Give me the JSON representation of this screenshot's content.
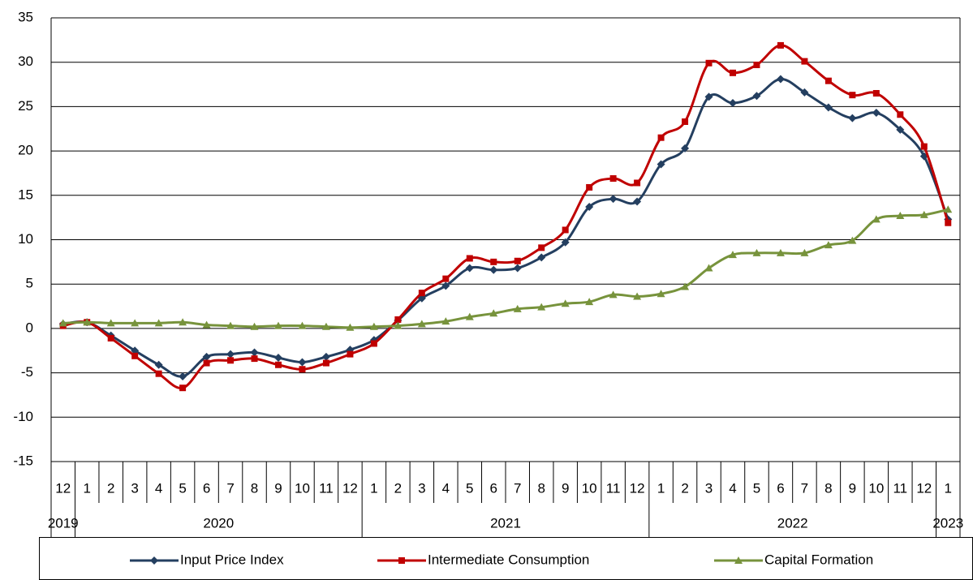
{
  "chart_data": {
    "type": "line",
    "categories": [
      "12",
      "1",
      "2",
      "3",
      "4",
      "5",
      "6",
      "7",
      "8",
      "9",
      "10",
      "11",
      "12",
      "1",
      "2",
      "3",
      "4",
      "5",
      "6",
      "7",
      "8",
      "9",
      "10",
      "11",
      "12",
      "1",
      "2",
      "3",
      "4",
      "5",
      "6",
      "7",
      "8",
      "9",
      "10",
      "11",
      "12",
      "1"
    ],
    "years": [
      "2019",
      "2020",
      "2021",
      "2022",
      "2023"
    ],
    "series": [
      {
        "name": "Input Price Index",
        "color": "#243f60",
        "marker": "diamond",
        "values": [
          0.5,
          0.7,
          -0.8,
          -2.5,
          -4.1,
          -5.4,
          -3.2,
          -2.9,
          -2.7,
          -3.3,
          -3.8,
          -3.2,
          -2.4,
          -1.3,
          0.9,
          3.4,
          4.8,
          6.8,
          6.6,
          6.8,
          8.0,
          9.7,
          13.7,
          14.6,
          14.3,
          18.5,
          20.3,
          26.1,
          25.4,
          26.2,
          28.1,
          26.6,
          24.9,
          23.7,
          24.3,
          22.4,
          19.4,
          12.3
        ]
      },
      {
        "name": "Intermediate Consumption",
        "color": "#c00000",
        "marker": "square",
        "values": [
          0.3,
          0.7,
          -1.1,
          -3.1,
          -5.1,
          -6.7,
          -3.9,
          -3.6,
          -3.4,
          -4.1,
          -4.6,
          -3.9,
          -2.9,
          -1.7,
          1.0,
          4.0,
          5.6,
          7.9,
          7.5,
          7.6,
          9.1,
          11.1,
          15.9,
          16.9,
          16.4,
          21.5,
          23.3,
          29.9,
          28.8,
          29.7,
          31.9,
          30.1,
          27.9,
          26.3,
          26.5,
          24.1,
          20.5,
          11.9
        ]
      },
      {
        "name": "Capital Formation",
        "color": "#77933c",
        "marker": "triangle",
        "values": [
          0.6,
          0.7,
          0.6,
          0.6,
          0.6,
          0.7,
          0.4,
          0.3,
          0.2,
          0.3,
          0.3,
          0.2,
          0.1,
          0.2,
          0.3,
          0.5,
          0.8,
          1.3,
          1.7,
          2.2,
          2.4,
          2.8,
          3.0,
          3.8,
          3.6,
          3.9,
          4.7,
          6.8,
          8.3,
          8.5,
          8.5,
          8.5,
          9.4,
          9.9,
          12.3,
          12.7,
          12.8,
          13.4
        ]
      }
    ],
    "ylim": [
      -15,
      35
    ],
    "yticks": [
      -15,
      -10,
      -5,
      0,
      5,
      10,
      15,
      20,
      25,
      30,
      35
    ],
    "grid": true,
    "legend": "bottom"
  }
}
